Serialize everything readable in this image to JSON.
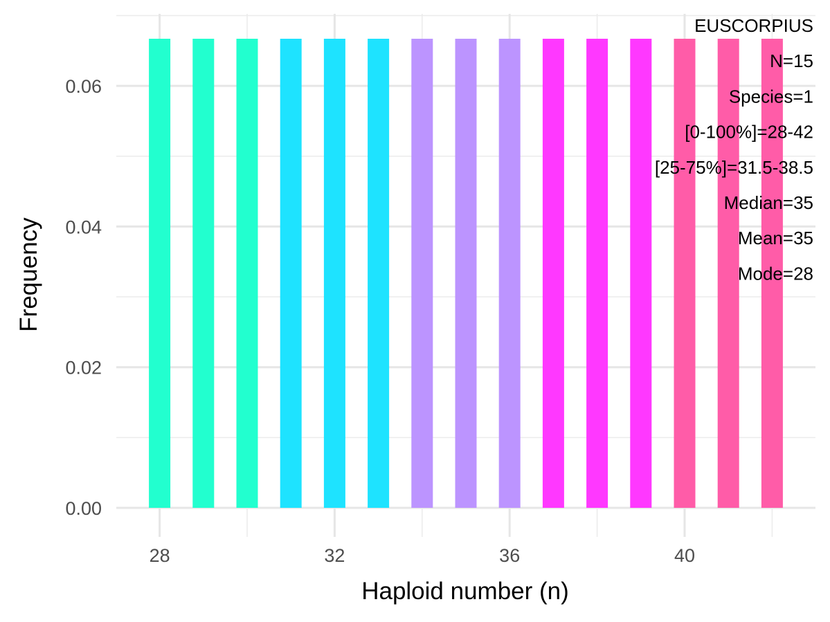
{
  "chart_data": {
    "type": "bar",
    "xlabel": "Haploid number (n)",
    "ylabel": "Frequency",
    "x": [
      28,
      29,
      30,
      31,
      32,
      33,
      34,
      35,
      36,
      37,
      38,
      39,
      40,
      41,
      42
    ],
    "values": [
      0.0667,
      0.0667,
      0.0667,
      0.0667,
      0.0667,
      0.0667,
      0.0667,
      0.0667,
      0.0667,
      0.0667,
      0.0667,
      0.0667,
      0.0667,
      0.0667,
      0.0667
    ],
    "colors": [
      "#22FFCF",
      "#22FFCF",
      "#22FFCF",
      "#1EE3FF",
      "#1EE3FF",
      "#1EE3FF",
      "#BC94FF",
      "#BC94FF",
      "#BC94FF",
      "#FF38FF",
      "#FF38FF",
      "#FF38FF",
      "#FF5CA8",
      "#FF5CA8",
      "#FF5CA8"
    ],
    "xlim": [
      27.0,
      43.0
    ],
    "ylim": [
      0,
      0.0667
    ],
    "x_ticks": [
      "28",
      "32",
      "36",
      "40"
    ],
    "y_ticks": [
      "0.00",
      "0.02",
      "0.04",
      "0.06"
    ],
    "grid": true,
    "annotation_placement": "top-right",
    "annotations": [
      "EUSCORPIUS",
      "N=15",
      "Species=1",
      "[0-100%]=28-42",
      "[25-75%]=31.5-38.5",
      "Median=35",
      "Mean=35",
      "Mode=28"
    ]
  }
}
